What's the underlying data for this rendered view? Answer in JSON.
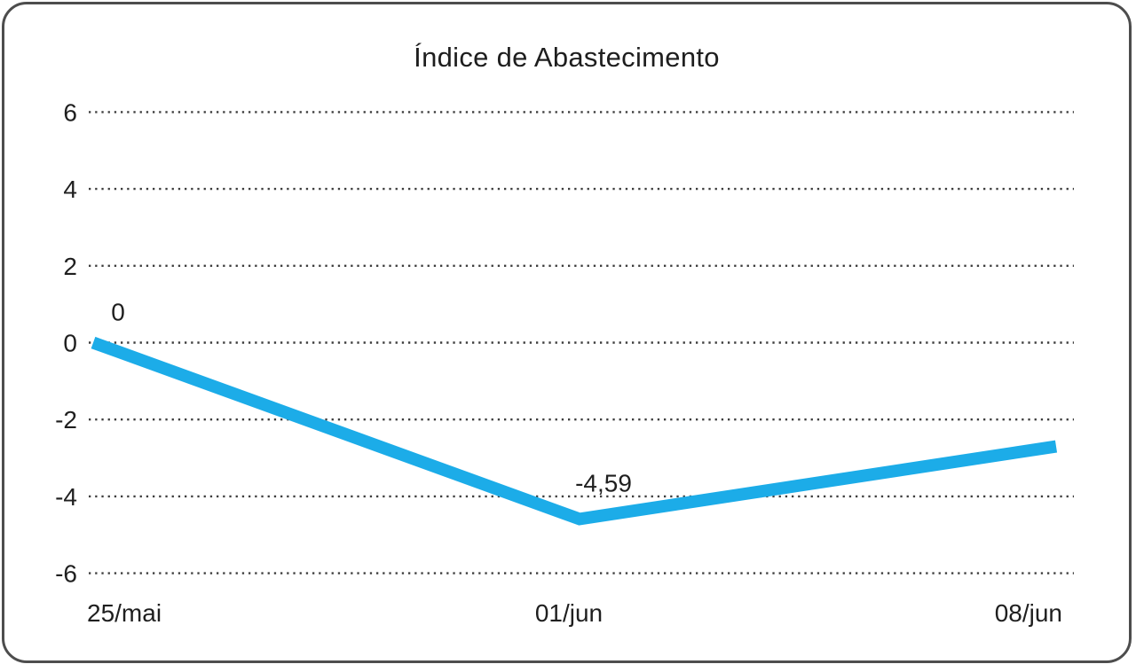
{
  "chart_data": {
    "type": "line",
    "title": "Índice de Abastecimento",
    "categories": [
      "25/mai",
      "01/jun",
      "08/jun"
    ],
    "series": [
      {
        "name": "Índice de Abastecimento",
        "values": [
          0,
          -4.59,
          -2.7
        ]
      }
    ],
    "data_labels": [
      "0",
      "-4,59",
      ""
    ],
    "ytick_values": [
      6,
      4,
      2,
      0,
      -2,
      -4,
      -6
    ],
    "ytick_labels": [
      "6",
      "4",
      "2",
      "0",
      "-2",
      "-4",
      "-6"
    ],
    "ylim": [
      -6,
      6
    ],
    "xlabel": "",
    "ylabel": "",
    "grid": "horizontal-dotted",
    "legend_position": "none"
  },
  "style": {
    "line_color": "#1CACE8",
    "text_color": "#1f1f1f",
    "grid_color": "#3d3d3d",
    "border_color": "#4d4d4d",
    "background": "#ffffff"
  }
}
